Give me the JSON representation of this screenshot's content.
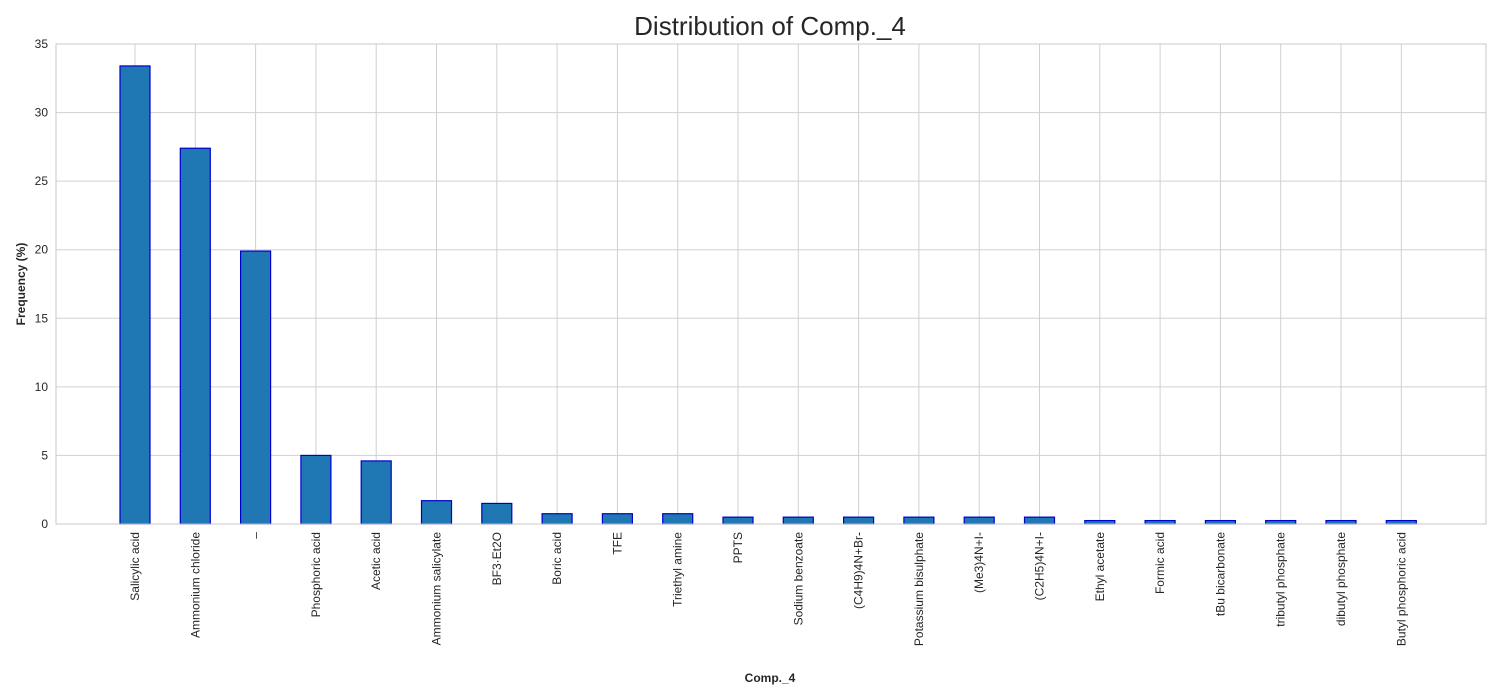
{
  "chart_data": {
    "type": "bar",
    "title": "Distribution of Comp._4",
    "xlabel": "Comp._4",
    "ylabel": "Frequency (%)",
    "ylim": [
      0,
      35
    ],
    "yticks": [
      0,
      5,
      10,
      15,
      20,
      25,
      30,
      35
    ],
    "grid": true,
    "bar_color": "#1f77b4",
    "bar_edge_color": "#0000cd",
    "categories": [
      "Salicylic acid",
      "Ammonium chloride",
      "–",
      "Phosphoric acid",
      "Acetic acid",
      "Ammonium salicylate",
      "BF3·Et2O",
      "Boric acid",
      "TFE",
      "Triethyl amine",
      "PPTS",
      "Sodium benzoate",
      "(C4H9)4N+Br-",
      "Potassium bisulphate",
      "(Me3)4N+I-",
      "(C2H5)4N+I-",
      "Ethyl acetate",
      "Formic acid",
      "tBu bicarbonate",
      "tributyl phosphate",
      "dibutyl phosphate",
      "Butyl phosphoric acid"
    ],
    "values": [
      33.4,
      27.4,
      19.9,
      5.0,
      4.6,
      1.7,
      1.5,
      0.75,
      0.75,
      0.75,
      0.5,
      0.5,
      0.5,
      0.5,
      0.5,
      0.5,
      0.25,
      0.25,
      0.25,
      0.25,
      0.25,
      0.25
    ]
  }
}
